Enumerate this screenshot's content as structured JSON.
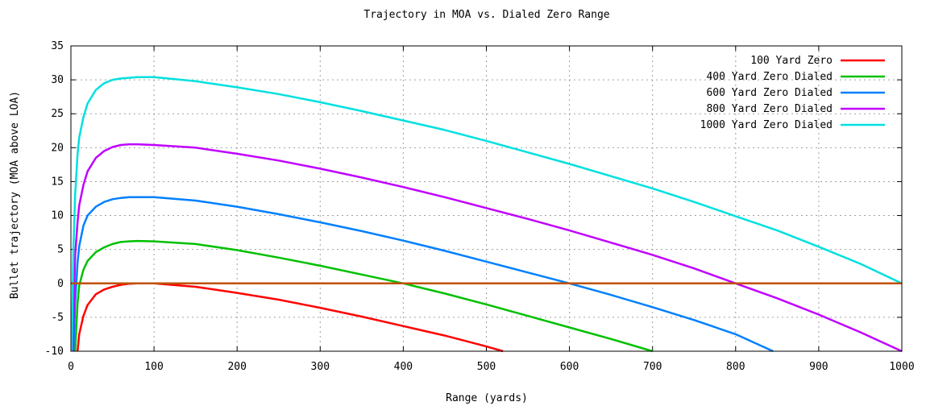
{
  "chart_data": {
    "type": "line",
    "title": "Trajectory in MOA vs. Dialed Zero Range",
    "xlabel": "Range (yards)",
    "ylabel": "Bullet trajectory (MOA above LOA)",
    "xlim": [
      0,
      1000
    ],
    "ylim": [
      -10,
      35
    ],
    "x_ticks": [
      "0",
      "100",
      "200",
      "300",
      "400",
      "500",
      "600",
      "700",
      "800",
      "900",
      "1000"
    ],
    "y_ticks": [
      "35",
      "30",
      "25",
      "20",
      "15",
      "10",
      "5",
      "0",
      "-5",
      "-10"
    ],
    "grid": true,
    "legend_position": "top-right",
    "zero_line_color": "#c05000",
    "series": [
      {
        "name": "100 Yard Zero",
        "color": "#ff0000",
        "x": [
          8,
          10,
          15,
          20,
          30,
          40,
          50,
          60,
          70,
          80,
          100,
          150,
          200,
          250,
          300,
          350,
          400,
          450,
          500,
          520
        ],
        "y": [
          -10,
          -7.5,
          -4.8,
          -3.2,
          -1.6,
          -0.9,
          -0.5,
          -0.2,
          -0.05,
          0,
          0,
          -0.5,
          -1.4,
          -2.4,
          -3.6,
          -4.9,
          -6.3,
          -7.7,
          -9.3,
          -10
        ]
      },
      {
        "name": "400 Yard Zero Dialed",
        "color": "#00c000",
        "x": [
          5,
          8,
          10,
          15,
          20,
          30,
          40,
          50,
          60,
          70,
          80,
          100,
          150,
          200,
          250,
          300,
          350,
          400,
          450,
          500,
          550,
          600,
          650,
          700
        ],
        "y": [
          -10,
          -3,
          -0.3,
          2,
          3.3,
          4.6,
          5.3,
          5.8,
          6.1,
          6.2,
          6.25,
          6.2,
          5.8,
          4.9,
          3.8,
          2.6,
          1.3,
          0,
          -1.5,
          -3.1,
          -4.8,
          -6.5,
          -8.2,
          -10
        ]
      },
      {
        "name": "600 Yard Zero Dialed",
        "color": "#0080ff",
        "x": [
          3,
          5,
          8,
          10,
          15,
          20,
          30,
          40,
          50,
          60,
          70,
          80,
          100,
          150,
          200,
          250,
          300,
          350,
          400,
          450,
          500,
          550,
          600,
          650,
          700,
          750,
          800,
          845
        ],
        "y": [
          -10,
          -3,
          3,
          5.5,
          8.5,
          10,
          11.3,
          12,
          12.4,
          12.6,
          12.7,
          12.7,
          12.7,
          12.2,
          11.3,
          10.2,
          9,
          7.7,
          6.3,
          4.8,
          3.2,
          1.6,
          0,
          -1.7,
          -3.5,
          -5.4,
          -7.5,
          -10
        ]
      },
      {
        "name": "800 Yard Zero Dialed",
        "color": "#c000ff",
        "x": [
          2,
          5,
          8,
          10,
          15,
          20,
          30,
          40,
          50,
          60,
          70,
          80,
          100,
          150,
          200,
          250,
          300,
          350,
          400,
          450,
          500,
          550,
          600,
          650,
          700,
          750,
          800,
          850,
          900,
          950,
          1000
        ],
        "y": [
          -10,
          4,
          9,
          11.5,
          14.5,
          16.5,
          18.5,
          19.5,
          20.1,
          20.4,
          20.5,
          20.5,
          20.4,
          20,
          19.1,
          18.1,
          16.9,
          15.6,
          14.2,
          12.7,
          11.1,
          9.5,
          7.8,
          6,
          4.2,
          2.2,
          0,
          -2.2,
          -4.6,
          -7.2,
          -10
        ]
      },
      {
        "name": "1000 Yard Zero Dialed",
        "color": "#00e0e0",
        "x": [
          1,
          3,
          5,
          8,
          10,
          15,
          20,
          30,
          40,
          50,
          60,
          70,
          80,
          100,
          150,
          200,
          250,
          300,
          350,
          400,
          450,
          500,
          550,
          600,
          650,
          700,
          750,
          800,
          850,
          900,
          950,
          1000
        ],
        "y": [
          -10,
          5,
          13,
          19,
          21.5,
          24.5,
          26.5,
          28.5,
          29.5,
          30,
          30.2,
          30.3,
          30.4,
          30.4,
          29.8,
          28.9,
          27.9,
          26.7,
          25.4,
          24,
          22.6,
          21,
          19.3,
          17.6,
          15.8,
          14,
          12,
          9.9,
          7.8,
          5.4,
          2.9,
          0
        ]
      }
    ]
  }
}
